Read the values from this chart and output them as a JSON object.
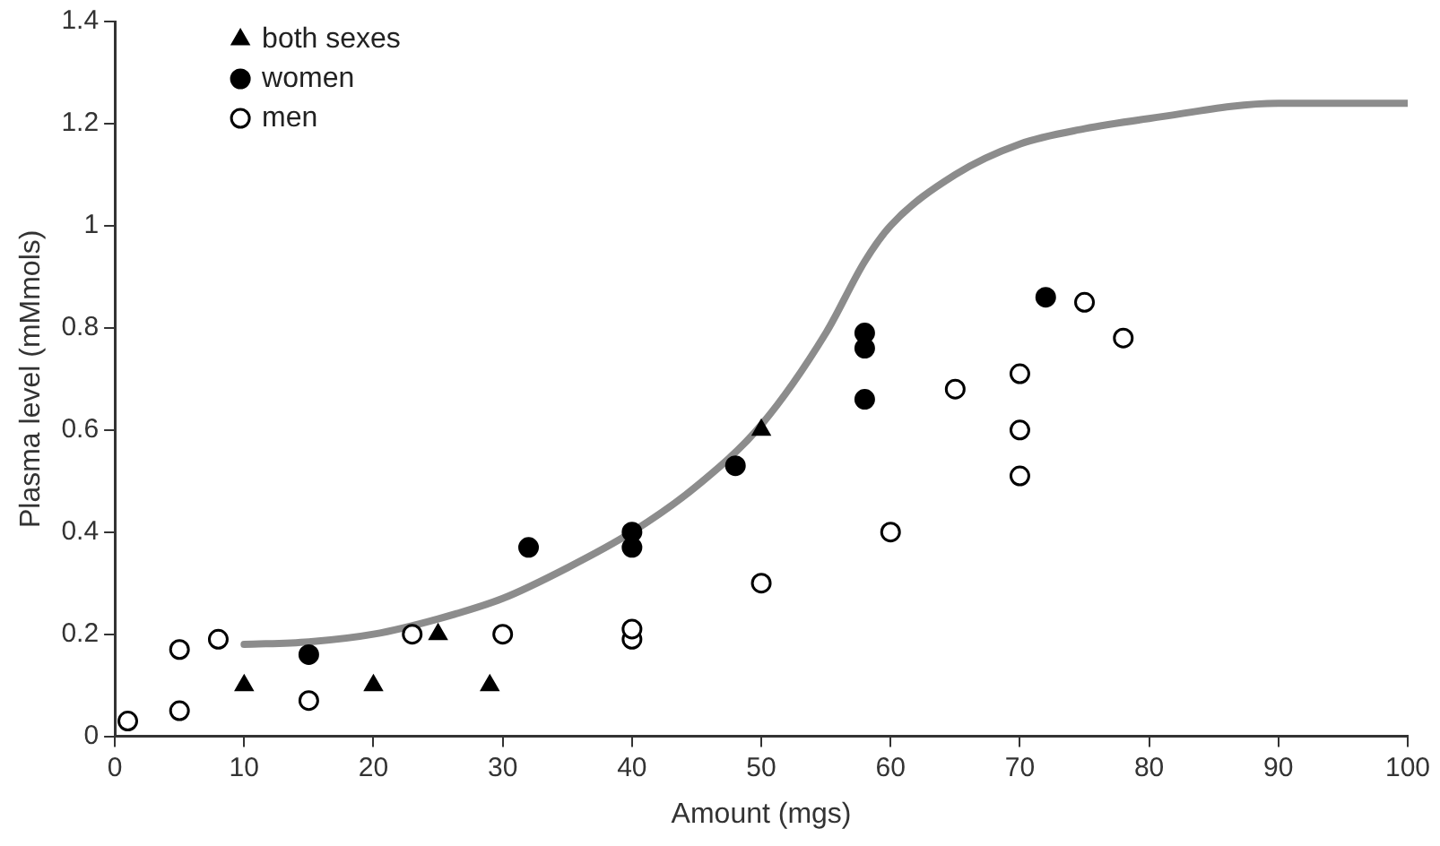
{
  "chart_data": {
    "type": "scatter",
    "xlabel": "Amount (mgs)",
    "ylabel": "Plasma level (mMmols)",
    "xlim": [
      0,
      100
    ],
    "xticks": [
      0,
      10,
      20,
      30,
      40,
      50,
      60,
      70,
      80,
      90,
      100
    ],
    "ylim": [
      0,
      1.4
    ],
    "yticks": [
      0,
      0.2,
      0.4,
      0.6,
      0.8,
      1,
      1.2,
      1.4
    ],
    "grid": false,
    "legend": "top left",
    "series": [
      {
        "name": "both sexes",
        "color": "#000000",
        "marker": "triangle",
        "x": [
          10,
          20,
          25,
          29,
          50
        ],
        "values": [
          0.1,
          0.1,
          0.2,
          0.1,
          0.6
        ]
      },
      {
        "name": "women",
        "color": "#000000",
        "marker": "circle",
        "x": [
          15,
          32,
          40,
          40,
          48,
          58,
          58,
          58,
          72
        ],
        "values": [
          0.16,
          0.37,
          0.37,
          0.4,
          0.53,
          0.66,
          0.76,
          0.79,
          0.86
        ]
      },
      {
        "name": "men",
        "color": "#ffffff",
        "marker": "circle",
        "x": [
          1,
          5,
          5,
          8,
          15,
          23,
          30,
          40,
          40,
          50,
          60,
          65,
          70,
          70,
          70,
          75,
          78
        ],
        "values": [
          0.03,
          0.05,
          0.17,
          0.19,
          0.07,
          0.2,
          0.2,
          0.19,
          0.21,
          0.3,
          0.4,
          0.68,
          0.51,
          0.6,
          0.71,
          0.85,
          0.78
        ]
      },
      {
        "type": "line",
        "color": "#8c8c8c",
        "marker": "none",
        "x": [
          10,
          15,
          20,
          25,
          30,
          35,
          40,
          45,
          50,
          55,
          58,
          60,
          65,
          70,
          75,
          80,
          90,
          100
        ],
        "values": [
          0.18,
          0.185,
          0.2,
          0.23,
          0.27,
          0.33,
          0.4,
          0.49,
          0.61,
          0.79,
          0.93,
          1.0,
          1.1,
          1.16,
          1.19,
          1.21,
          1.24,
          1.24
        ]
      }
    ]
  }
}
